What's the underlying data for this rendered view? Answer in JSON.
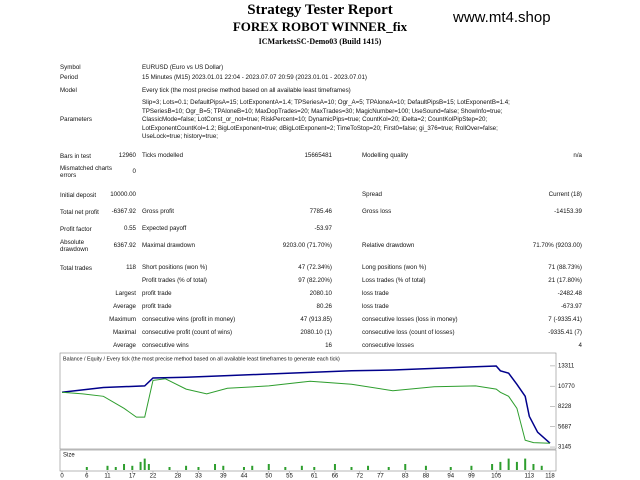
{
  "header": {
    "title": "Strategy Tester Report",
    "subtitle": "FOREX ROBOT WINNER_fix",
    "server": "ICMarketsSC-Demo03 (Build 1415)",
    "site": "www.mt4.shop"
  },
  "info": [
    {
      "label": "Symbol",
      "value": [
        "EURUSD (Euro vs US Dollar)"
      ]
    },
    {
      "label": "Period",
      "value": [
        "15 Minutes (M15) 2023.01.01 22:04 - 2023.07.07 20:59 (2023.01.01 - 2023.07.01)"
      ]
    },
    {
      "label": "Model",
      "value": [
        "Every tick (the most precise method based on all available least timeframes)"
      ]
    },
    {
      "label": "Parameters",
      "value": [
        "Slip=3; Lots=0.1; DefaultPipsA=15; LotExponentA=1.4; TPSeriesA=10; Ogr_A=5; TPAloneA=10; DefaultPipsB=15; LotExponentB=1.4;",
        "TPSeriesB=10; Ogr_B=5; TPAloneB=10; MaxDopTrades=20; MaxTrades=30; MagicNumber=100; UseSound=false; ShowInfo=true;",
        "ClassicMode=false; LotConst_or_not=true; RiskPercent=10; DynamicPips=true; CountKol=20; iDelta=2; CountKolPipStep=20;",
        "LotExponentCountKol=1.2; BigLotExponent=true; dBigLotExponent=2; TimeToStop=20; First0=false; gi_376=true; RollOver=false;",
        "UseLock=true; history=true;"
      ]
    }
  ],
  "stats": [
    [
      "Bars in test",
      "12960",
      "Ticks modelled",
      "15665481",
      "Modelling quality",
      "n/a"
    ],
    [
      "Mismatched charts errors",
      "0",
      null,
      null,
      null,
      null
    ],
    [
      "Initial deposit",
      "10000.00",
      null,
      null,
      "Spread",
      "Current (18)"
    ],
    [
      "Total net profit",
      "-6367.92",
      "Gross profit",
      "7785.46",
      "Gross loss",
      "-14153.39"
    ],
    [
      "Profit factor",
      "0.55",
      "Expected payoff",
      "-53.97",
      null,
      null
    ],
    [
      "Absolute drawdown",
      "6367.92",
      "Maximal drawdown",
      "9203.00 (71.70%)",
      "Relative drawdown",
      "71.70% (9203.00)"
    ],
    [
      "Total trades",
      "118",
      "Short positions (won %)",
      "47 (72.34%)",
      "Long positions (won %)",
      "71 (88.73%)"
    ],
    [
      null,
      null,
      "Profit trades (% of total)",
      "97 (82.20%)",
      "Loss trades (% of total)",
      "21 (17.80%)"
    ],
    [
      "Largest",
      null,
      "profit trade",
      "2080.10",
      "loss trade",
      "-2482.48"
    ],
    [
      "Average",
      null,
      "profit trade",
      "80.26",
      "loss trade",
      "-673.97"
    ],
    [
      "Maximum",
      null,
      "consecutive wins (profit in money)",
      "47 (913.85)",
      "consecutive losses (loss in money)",
      "7 (-9335.41)"
    ],
    [
      "Maximal",
      null,
      "consecutive profit (count of wins)",
      "2080.10 (1)",
      "consecutive loss (count of losses)",
      "-9335.41 (7)"
    ],
    [
      "Average",
      null,
      "consecutive wins",
      "16",
      "consecutive losses",
      "4"
    ]
  ],
  "graph": {
    "type": "line",
    "title": "Balance / Equity / Every tick (the most precise method based on all available least timeframes to generate each tick)",
    "xlim": [
      0,
      118
    ],
    "ylim": [
      2900,
      14050
    ],
    "yticks": [
      13311,
      10770,
      8228,
      5687,
      3145
    ],
    "series": [
      {
        "name": "Balance",
        "color": "#00008b",
        "x": [
          0,
          10,
          20,
          22,
          30,
          40,
          50,
          60,
          70,
          80,
          90,
          100,
          105,
          106,
          108,
          110,
          112,
          113,
          115,
          118
        ],
        "values": [
          10000,
          10600,
          10800,
          11800,
          11900,
          12100,
          12300,
          12500,
          12700,
          12800,
          13000,
          13200,
          13300,
          12700,
          12400,
          11000,
          9500,
          7000,
          5000,
          3632
        ]
      },
      {
        "name": "Equity",
        "color": "#2e9e2e",
        "x": [
          0,
          5,
          10,
          15,
          18,
          20,
          22,
          25,
          30,
          35,
          40,
          50,
          60,
          70,
          80,
          90,
          100,
          105,
          106,
          108,
          110,
          112,
          114,
          118
        ],
        "values": [
          10000,
          9800,
          9500,
          8000,
          6900,
          6900,
          11500,
          11700,
          10400,
          9800,
          10500,
          10800,
          11400,
          11000,
          10200,
          10700,
          10800,
          10400,
          10000,
          9500,
          8000,
          4000,
          3700,
          3632
        ]
      }
    ]
  },
  "size_chart": {
    "type": "bar",
    "title": "Size",
    "color": "#2e9e2e",
    "xlim": [
      0,
      118
    ],
    "ylim": [
      0,
      0.5
    ],
    "xticks": [
      0,
      6,
      11,
      17,
      22,
      28,
      33,
      39,
      44,
      50,
      55,
      61,
      66,
      72,
      77,
      83,
      88,
      94,
      99,
      105,
      113,
      118
    ],
    "x": [
      6,
      11,
      13,
      15,
      17,
      19,
      20,
      21,
      26,
      30,
      33,
      37,
      39,
      44,
      46,
      50,
      54,
      58,
      61,
      66,
      70,
      74,
      79,
      83,
      88,
      94,
      99,
      104,
      106,
      108,
      110,
      112,
      114,
      116
    ],
    "values": [
      0.1,
      0.14,
      0.1,
      0.2,
      0.14,
      0.27,
      0.38,
      0.2,
      0.1,
      0.14,
      0.1,
      0.2,
      0.14,
      0.1,
      0.14,
      0.2,
      0.1,
      0.14,
      0.1,
      0.2,
      0.1,
      0.14,
      0.1,
      0.2,
      0.14,
      0.1,
      0.14,
      0.2,
      0.27,
      0.38,
      0.27,
      0.38,
      0.2,
      0.14
    ]
  }
}
